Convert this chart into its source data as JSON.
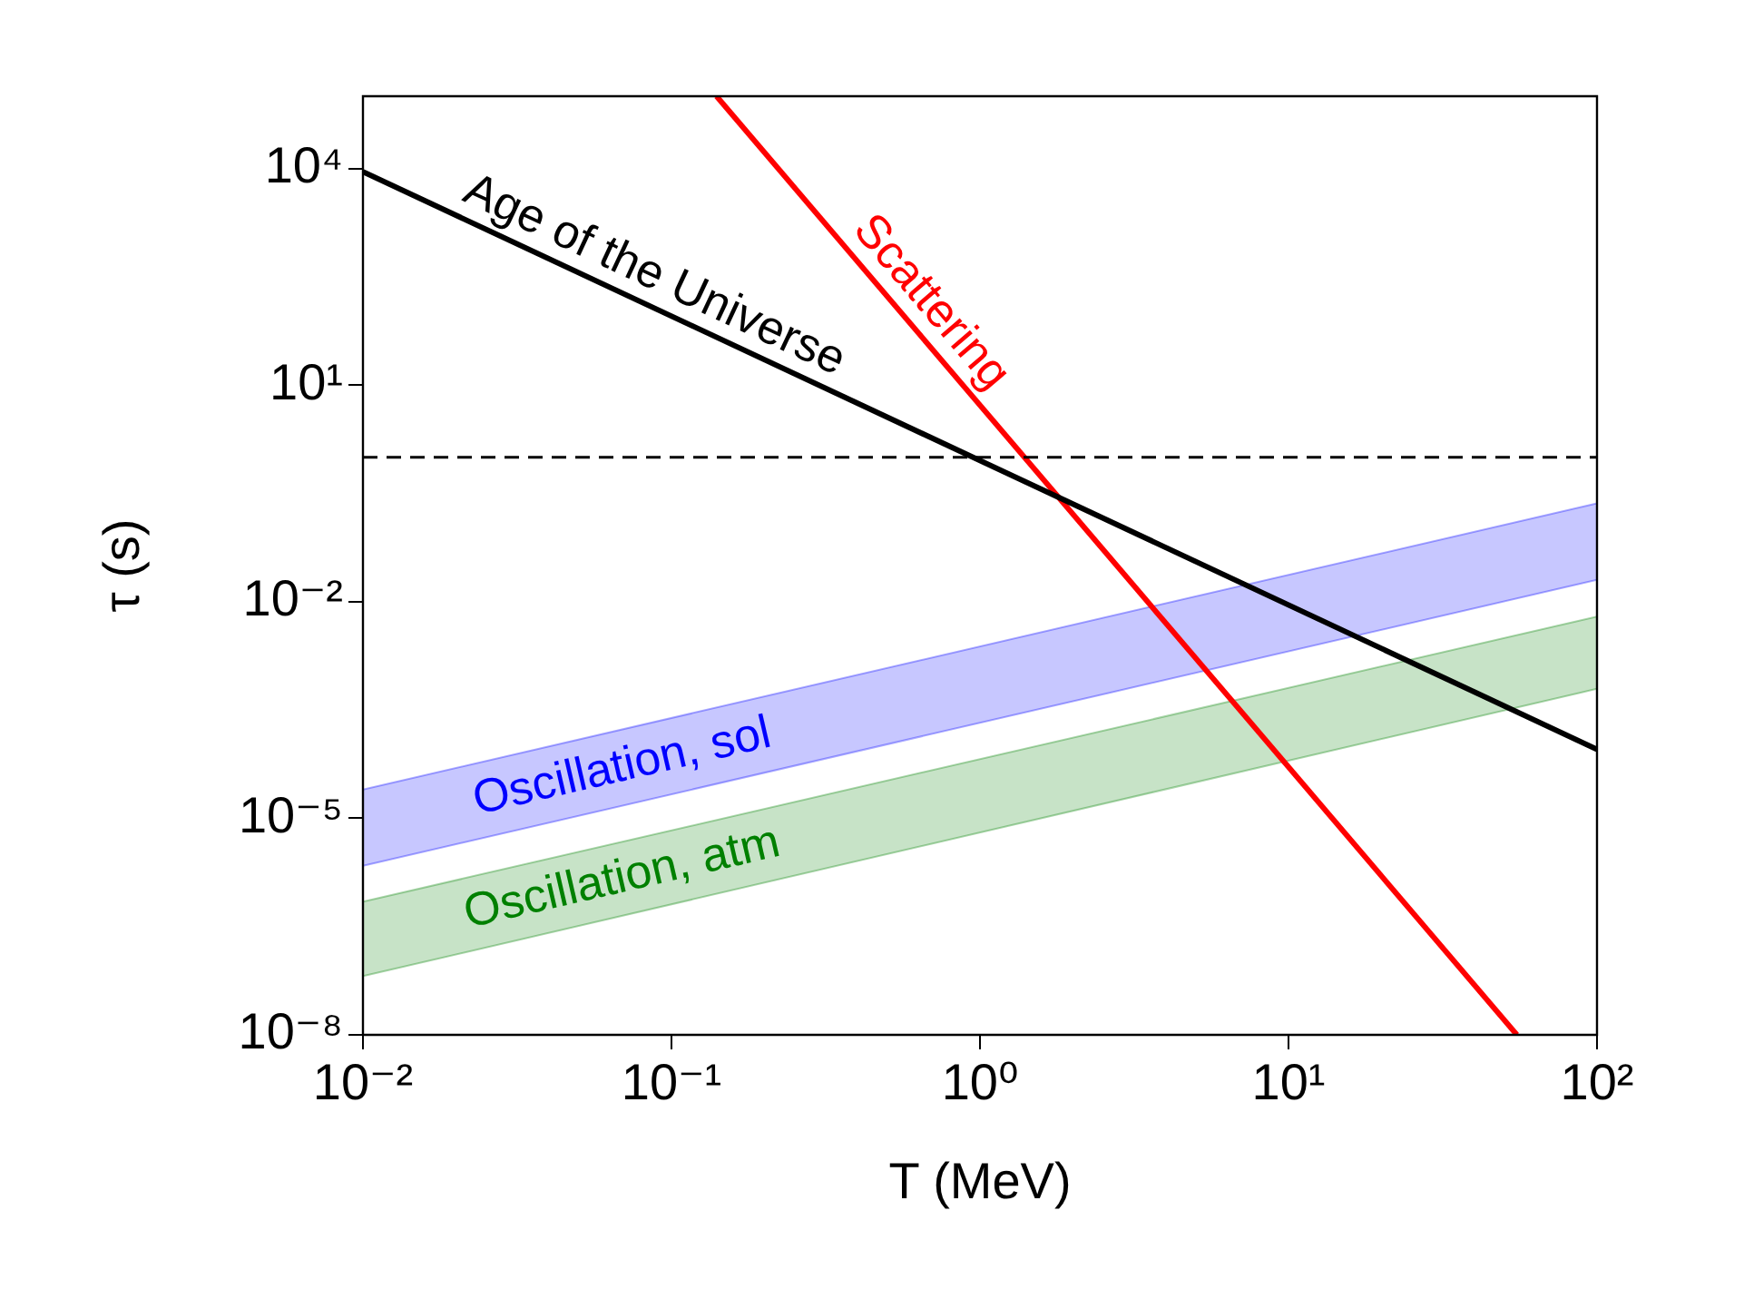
{
  "chart_data": {
    "type": "line",
    "xlabel": "T (MeV)",
    "ylabel": "τ (s)",
    "log": "xy",
    "grid": false,
    "legend": false,
    "xlim": [
      0.01,
      100
    ],
    "ylim": [
      1e-08,
      100000
    ],
    "xticks": [
      {
        "value": 0.01,
        "label": "10⁻²"
      },
      {
        "value": 0.1,
        "label": "10⁻¹"
      },
      {
        "value": 1,
        "label": "10⁰"
      },
      {
        "value": 10,
        "label": "10¹"
      },
      {
        "value": 100,
        "label": "10²"
      }
    ],
    "yticks": [
      {
        "value": 1e-08,
        "label": "10⁻⁸"
      },
      {
        "value": 1e-05,
        "label": "10⁻⁵"
      },
      {
        "value": 0.01,
        "label": "10⁻²"
      },
      {
        "value": 10,
        "label": "10¹"
      },
      {
        "value": 10000,
        "label": "10⁴"
      }
    ],
    "ref_lines": [
      {
        "axis": "y",
        "value": 1,
        "color": "#000000",
        "line_style": "dashed"
      }
    ],
    "series": [
      {
        "name": "Age of the Universe",
        "type": "line",
        "color": "#000000",
        "x": [
          0.01,
          100
        ],
        "values": [
          9000,
          9e-05
        ]
      },
      {
        "name": "Scattering",
        "type": "line",
        "color": "#ff0000",
        "x": [
          0.14,
          55
        ],
        "values": [
          100000,
          1e-08
        ]
      },
      {
        "name": "Oscillation, sol",
        "type": "area",
        "color": "#0000ff",
        "x": [
          0.01,
          100
        ],
        "values": [
          2.5e-05,
          0.23
        ]
      },
      {
        "type": "line",
        "color": "#0000ff",
        "x": [
          0.01,
          100
        ],
        "values": [
          2.2e-06,
          0.02
        ]
      },
      {
        "name": "Oscillation, atm",
        "type": "area",
        "color": "#008000",
        "x": [
          0.01,
          100
        ],
        "values": [
          7e-07,
          0.0062
        ]
      },
      {
        "type": "line",
        "color": "#008000",
        "x": [
          0.01,
          100
        ],
        "values": [
          6.5e-08,
          0.00062
        ]
      }
    ]
  }
}
